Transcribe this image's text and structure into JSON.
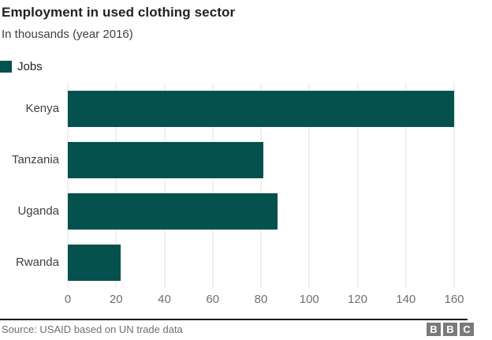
{
  "header": {
    "title": "Employment in used clothing sector",
    "subtitle": "In thousands (year 2016)"
  },
  "legend": {
    "label": "Jobs",
    "color": "#04514e"
  },
  "chart_data": {
    "type": "bar",
    "orientation": "horizontal",
    "title": "Employment in used clothing sector",
    "subtitle": "In thousands (year 2016)",
    "categories": [
      "Kenya",
      "Tanzania",
      "Uganda",
      "Rwanda"
    ],
    "series": [
      {
        "name": "Jobs",
        "values": [
          160,
          81,
          87,
          22
        ]
      }
    ],
    "xlabel": "",
    "ylabel": "",
    "xlim": [
      0,
      160
    ],
    "xticks": [
      0,
      20,
      40,
      60,
      80,
      100,
      120,
      140,
      160
    ],
    "grid": true,
    "legend_position": "top-left",
    "bar_color": "#04514e",
    "gridline_color": "#e2e2e2"
  },
  "footer": {
    "source": "Source: USAID based on UN trade data",
    "logo_letters": [
      "B",
      "B",
      "C"
    ]
  }
}
